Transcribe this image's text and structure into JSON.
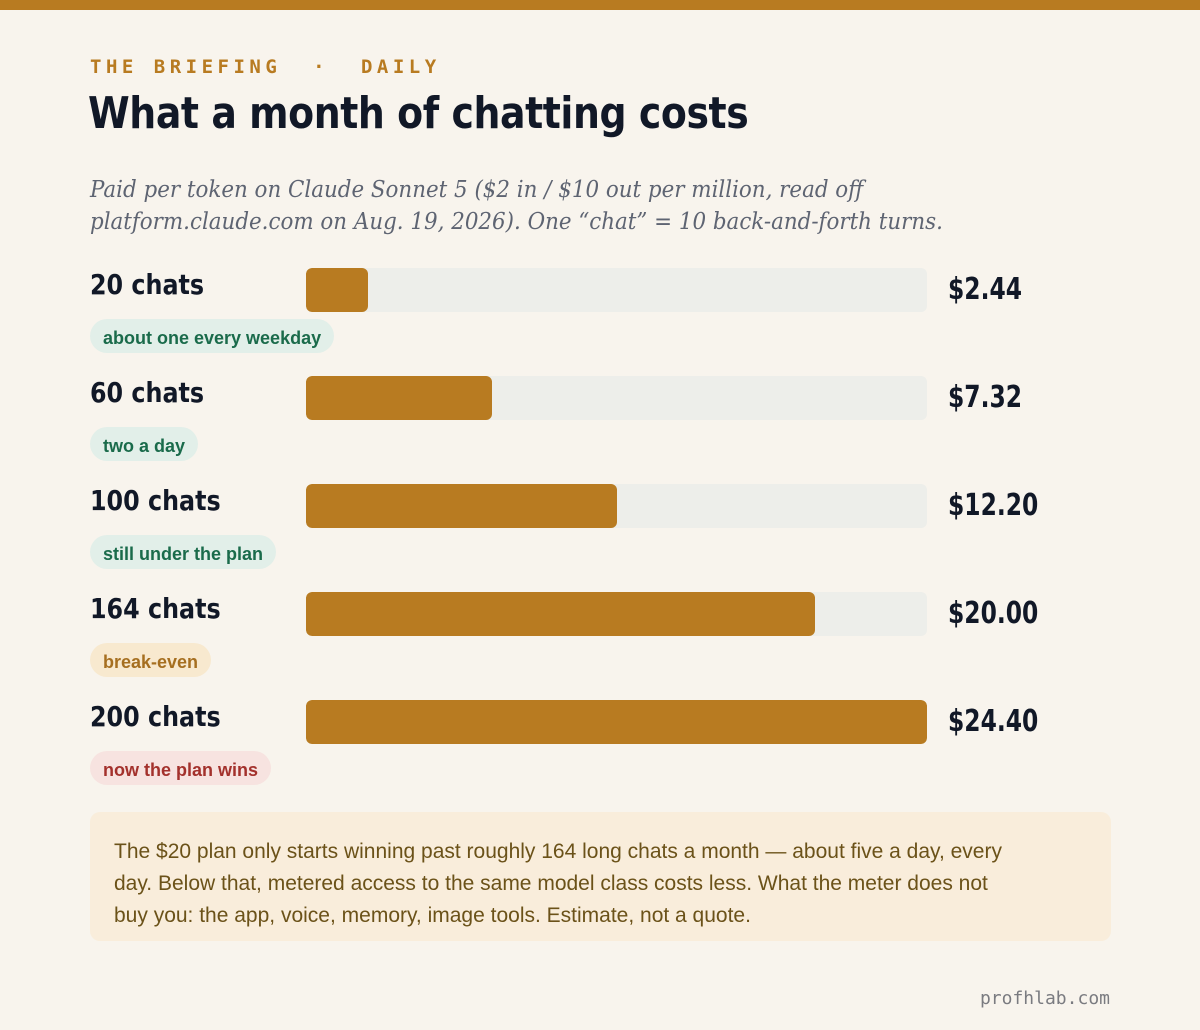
{
  "header": {
    "kicker": "THE BRIEFING  ·  DAILY",
    "title": "What a month of chatting costs",
    "subtitle": "Paid per token on Claude Sonnet 5 ($2 in / $10 out per million, read off platform.claude.com on Aug. 19, 2026). One “chat” = 10 back-and-forth turns."
  },
  "chart_data": {
    "type": "bar",
    "orientation": "horizontal",
    "categories": [
      "20 chats",
      "60 chats",
      "100 chats",
      "164 chats",
      "200 chats"
    ],
    "values": [
      2.44,
      7.32,
      12.2,
      20.0,
      24.4
    ],
    "value_labels": [
      "$2.44",
      "$7.32",
      "$12.20",
      "$20.00",
      "$24.40"
    ],
    "annotations": [
      {
        "text": "about one every weekday",
        "tone": "positive"
      },
      {
        "text": "two a day",
        "tone": "positive"
      },
      {
        "text": "still under the plan",
        "tone": "positive"
      },
      {
        "text": "break-even",
        "tone": "neutral"
      },
      {
        "text": "now the plan wins",
        "tone": "negative"
      }
    ],
    "xlim": [
      0,
      24.4
    ],
    "grid": false,
    "colors": {
      "bar": "#b87b21",
      "track": "#edeeea",
      "positive": "#1a6b4b",
      "neutral": "#a66f20",
      "negative": "#a3312c"
    }
  },
  "note": {
    "text": "The $20 plan only starts winning past roughly 164 long chats a month — about five a day, every day. Below that, metered access to the same model class costs less. What the meter does not buy you: the app, voice, memory, image tools. Estimate, not a quote."
  },
  "footer": {
    "credit": "profhlab.com"
  }
}
